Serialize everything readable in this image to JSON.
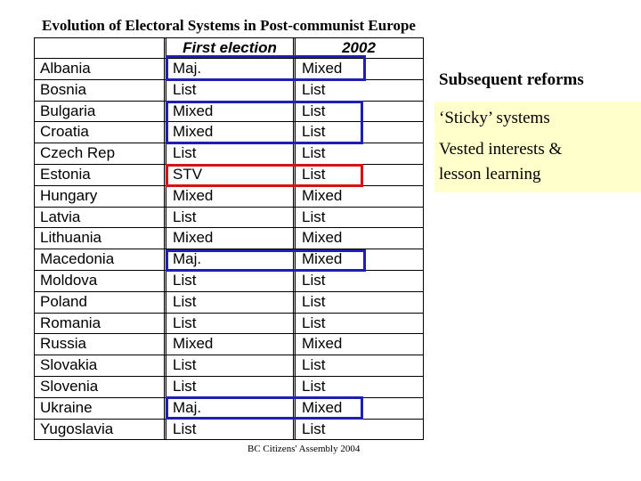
{
  "title": "Evolution of Electoral Systems in Post-communist Europe",
  "table": {
    "headers": [
      "",
      "First election",
      "2002"
    ],
    "rows": [
      [
        "Albania",
        "Maj.",
        "Mixed"
      ],
      [
        "Bosnia",
        "List",
        "List"
      ],
      [
        "Bulgaria",
        "Mixed",
        "List"
      ],
      [
        "Croatia",
        "Mixed",
        "List"
      ],
      [
        "Czech Rep",
        "List",
        "List"
      ],
      [
        "Estonia",
        "STV",
        "List"
      ],
      [
        "Hungary",
        "Mixed",
        "Mixed"
      ],
      [
        "Latvia",
        "List",
        "List"
      ],
      [
        "Lithuania",
        "Mixed",
        "Mixed"
      ],
      [
        "Macedonia",
        "Maj.",
        "Mixed"
      ],
      [
        "Moldova",
        "List",
        "List"
      ],
      [
        "Poland",
        "List",
        "List"
      ],
      [
        "Romania",
        "List",
        "List"
      ],
      [
        "Russia",
        "Mixed",
        "Mixed"
      ],
      [
        "Slovakia",
        "List",
        "List"
      ],
      [
        "Slovenia",
        "List",
        "List"
      ],
      [
        "Ukraine",
        "Maj.",
        "Mixed"
      ],
      [
        "Yugoslavia",
        "List",
        "List"
      ]
    ]
  },
  "highlights": {
    "blue_color": "#1f1fb4",
    "red_color": "#d41414"
  },
  "side": {
    "heading": "Subsequent reforms",
    "items": [
      "‘Sticky’ systems",
      "Vested interests &",
      "lesson learning"
    ],
    "panel_color": "#ffffcc"
  },
  "footer": "BC Citizens' Assembly 2004"
}
